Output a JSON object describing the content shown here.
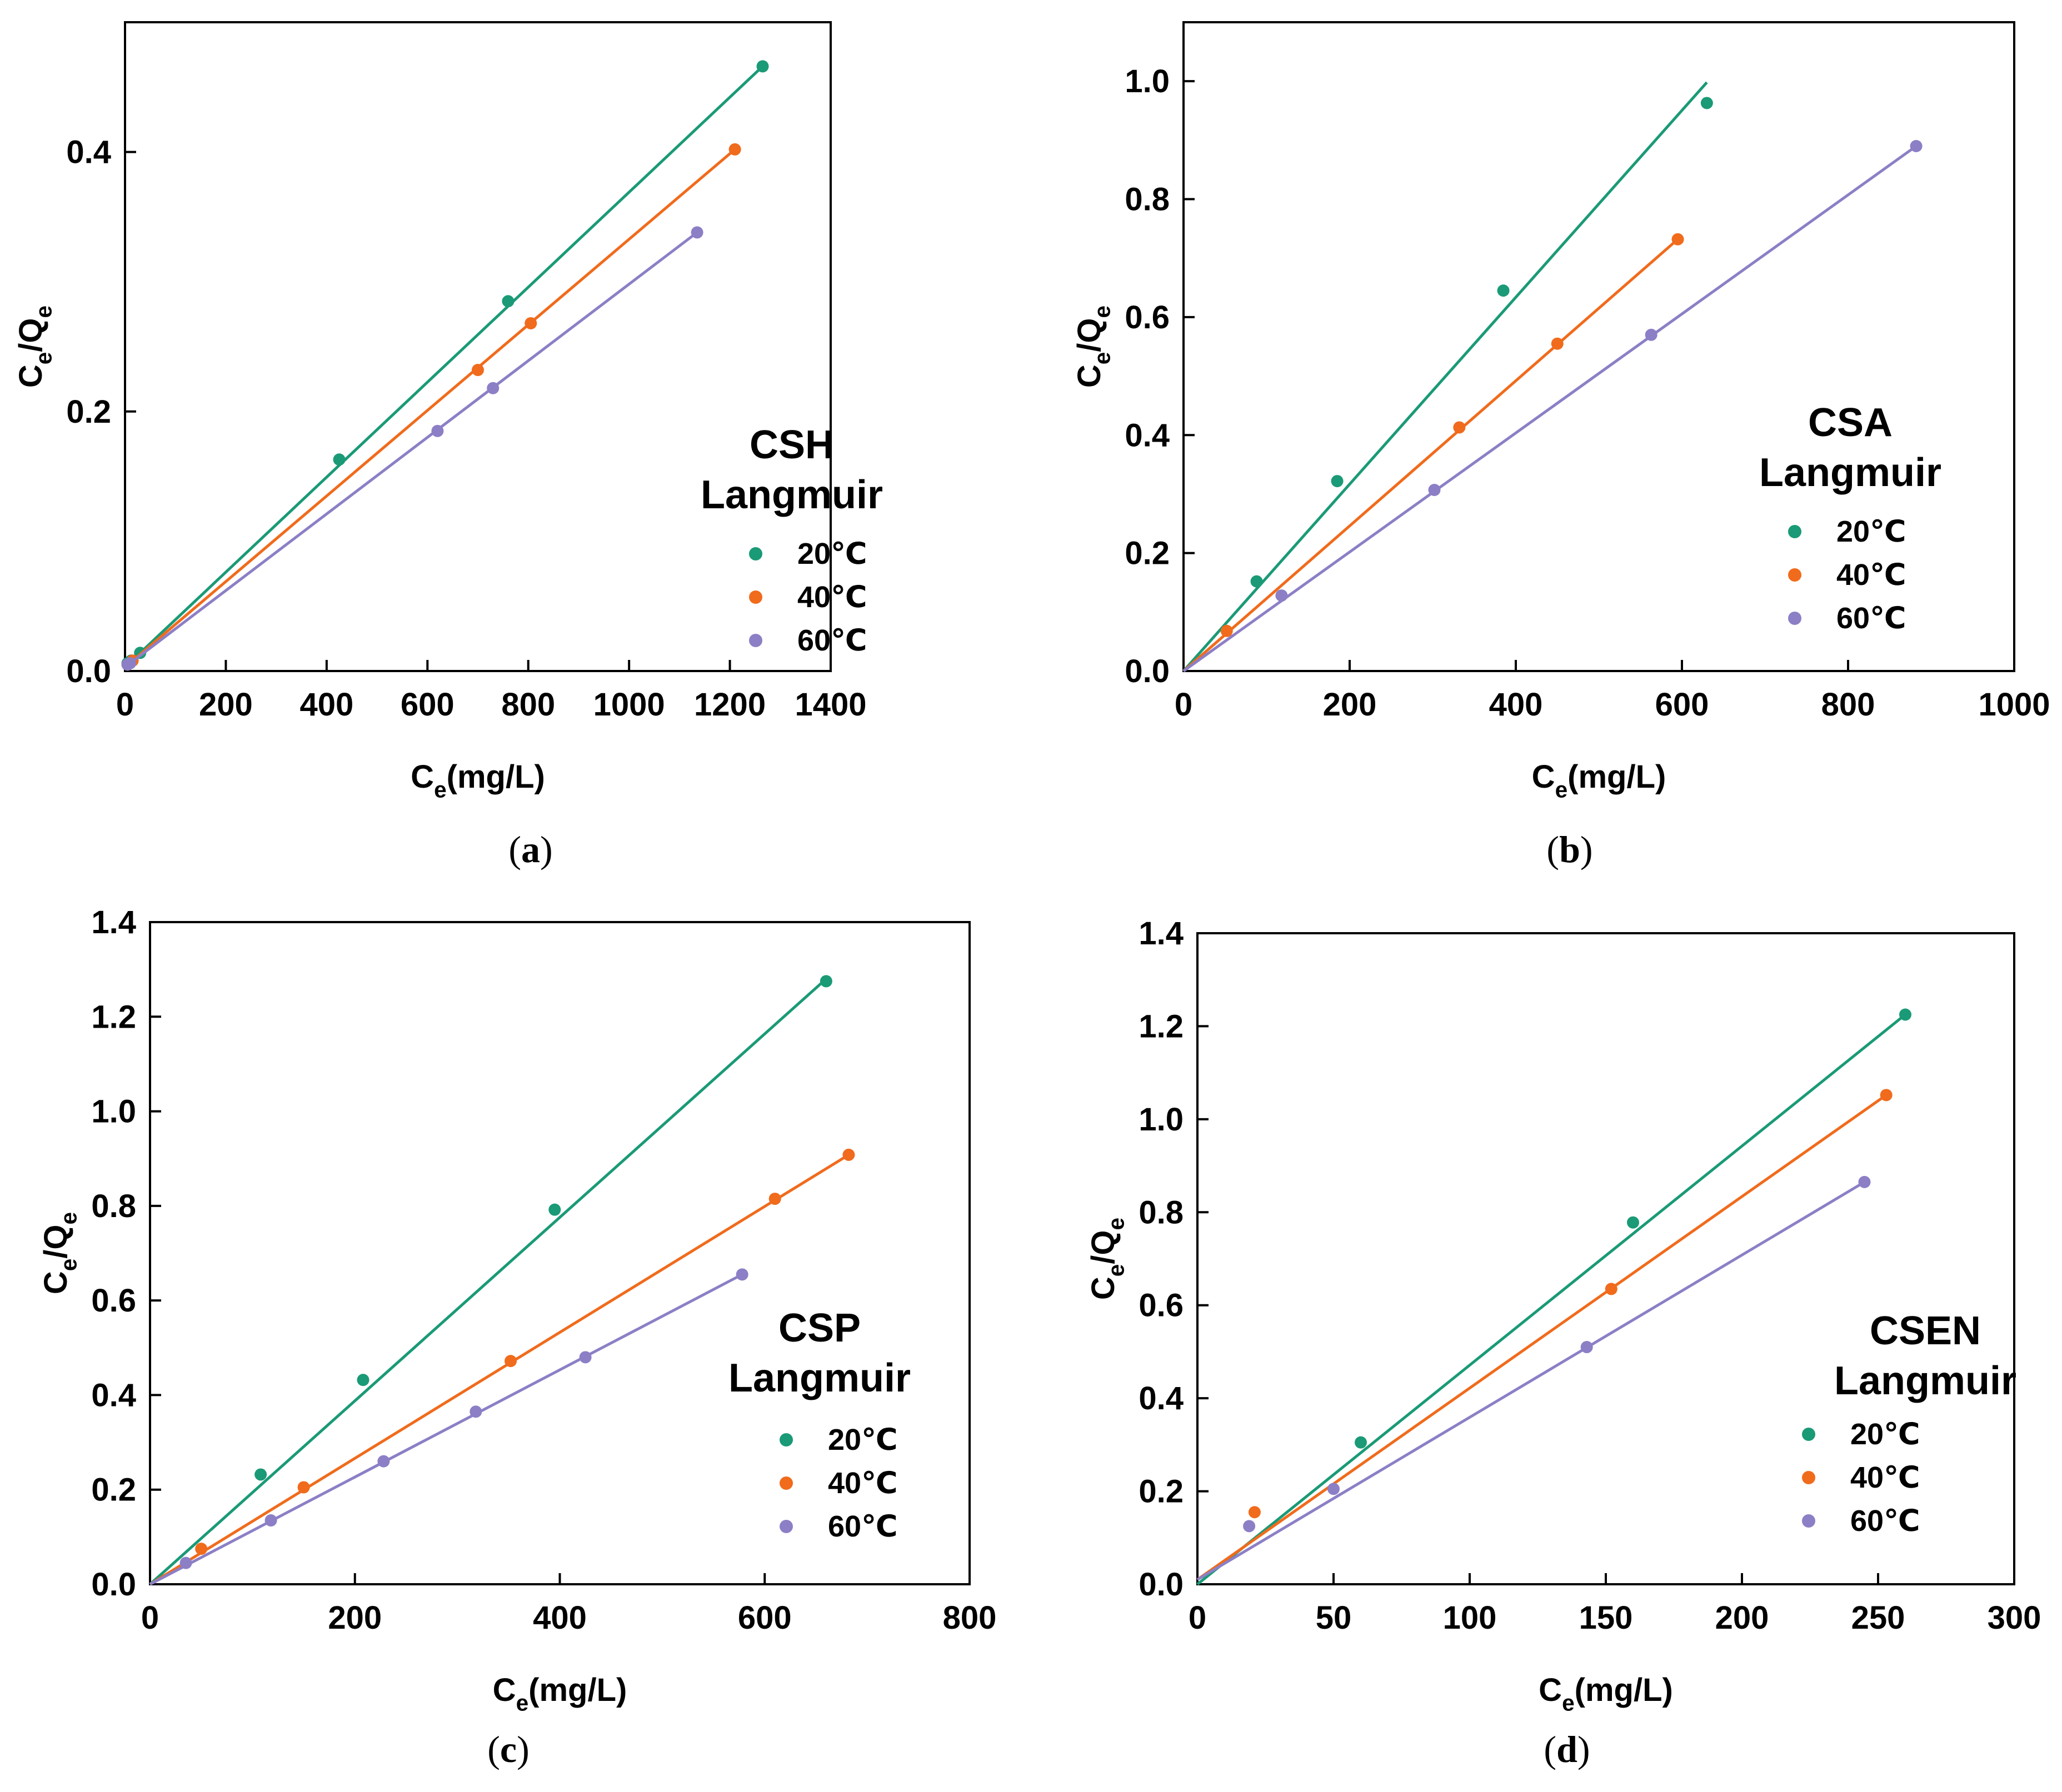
{
  "colors": {
    "t20": "#1a9a76",
    "t40": "#f06b1c",
    "t60": "#8c7fc6"
  },
  "chart_data": [
    {
      "type": "scatter",
      "panel": "a",
      "caption": "a",
      "title": "CSH",
      "subtitle": "Langmuir",
      "xlabel": "Ce(mg/L)",
      "ylabel": "Ce/Qe",
      "xlim": [
        0,
        1400
      ],
      "ylim": [
        0,
        0.5
      ],
      "xticks": [
        0,
        200,
        400,
        600,
        800,
        1000,
        1200,
        1400
      ],
      "yticks": [
        0.0,
        0.2,
        0.4
      ],
      "legend_position": "right",
      "series": [
        {
          "name": "20℃",
          "color_key": "t20",
          "x": [
            5,
            12,
            30,
            425,
            760,
            1265
          ],
          "y": [
            0.006,
            0.008,
            0.014,
            0.163,
            0.285,
            0.466
          ],
          "fit": [
            [
              0,
              0.003
            ],
            [
              1265,
              0.466
            ]
          ]
        },
        {
          "name": "40℃",
          "color_key": "t40",
          "x": [
            5,
            15,
            700,
            805,
            1210
          ],
          "y": [
            0.005,
            0.008,
            0.232,
            0.268,
            0.402
          ],
          "fit": [
            [
              0,
              0.003
            ],
            [
              1210,
              0.402
            ]
          ]
        },
        {
          "name": "60℃",
          "color_key": "t60",
          "x": [
            5,
            10,
            620,
            730,
            1135
          ],
          "y": [
            0.005,
            0.006,
            0.185,
            0.218,
            0.338
          ],
          "fit": [
            [
              0,
              0.003
            ],
            [
              1135,
              0.338
            ]
          ]
        }
      ]
    },
    {
      "type": "scatter",
      "panel": "b",
      "caption": "b",
      "title": "CSA",
      "subtitle": "Langmuir",
      "xlabel": "Ce(mg/L)",
      "ylabel": "Ce/Qe",
      "xlim": [
        0,
        1000
      ],
      "ylim": [
        0,
        1.1
      ],
      "xticks": [
        0,
        200,
        400,
        600,
        800,
        1000
      ],
      "yticks": [
        0.0,
        0.2,
        0.4,
        0.6,
        0.8,
        1.0
      ],
      "legend_position": "right",
      "series": [
        {
          "name": "20℃",
          "color_key": "t20",
          "x": [
            88,
            185,
            385,
            630
          ],
          "y": [
            0.152,
            0.322,
            0.645,
            0.963
          ],
          "fit": [
            [
              0,
              0.0
            ],
            [
              630,
              0.998
            ]
          ]
        },
        {
          "name": "40℃",
          "color_key": "t40",
          "x": [
            52,
            332,
            450,
            595
          ],
          "y": [
            0.068,
            0.413,
            0.555,
            0.732
          ],
          "fit": [
            [
              0,
              0.0
            ],
            [
              595,
              0.732
            ]
          ]
        },
        {
          "name": "60℃",
          "color_key": "t60",
          "x": [
            118,
            302,
            563,
            882
          ],
          "y": [
            0.128,
            0.307,
            0.57,
            0.89
          ],
          "fit": [
            [
              0,
              0.0
            ],
            [
              882,
              0.89
            ]
          ]
        }
      ]
    },
    {
      "type": "scatter",
      "panel": "c",
      "caption": "c",
      "title": "CSP",
      "subtitle": "Langmuir",
      "xlabel": "Ce(mg/L)",
      "ylabel": "Ce/Qe",
      "xlim": [
        0,
        800
      ],
      "ylim": [
        0,
        1.4
      ],
      "xticks": [
        0,
        200,
        400,
        600,
        800
      ],
      "yticks": [
        0.0,
        0.2,
        0.4,
        0.6,
        0.8,
        1.0,
        1.2,
        1.4
      ],
      "legend_position": "right",
      "series": [
        {
          "name": "20℃",
          "color_key": "t20",
          "x": [
            108,
            208,
            395,
            660
          ],
          "y": [
            0.232,
            0.432,
            0.792,
            1.275
          ],
          "fit": [
            [
              0,
              0.0
            ],
            [
              660,
              1.28
            ]
          ]
        },
        {
          "name": "40℃",
          "color_key": "t40",
          "x": [
            50,
            150,
            352,
            610,
            682
          ],
          "y": [
            0.075,
            0.205,
            0.472,
            0.815,
            0.908
          ],
          "fit": [
            [
              0,
              0.0
            ],
            [
              682,
              0.908
            ]
          ]
        },
        {
          "name": "60℃",
          "color_key": "t60",
          "x": [
            35,
            118,
            228,
            318,
            425,
            578
          ],
          "y": [
            0.045,
            0.135,
            0.26,
            0.365,
            0.48,
            0.655
          ],
          "fit": [
            [
              0,
              0.0
            ],
            [
              578,
              0.655
            ]
          ]
        }
      ]
    },
    {
      "type": "scatter",
      "panel": "d",
      "caption": "d",
      "title": "CSEN",
      "subtitle": "Langmuir",
      "xlabel": "Ce(mg/L)",
      "ylabel": "Ce/Qe",
      "xlim": [
        0,
        300
      ],
      "ylim": [
        0,
        1.4
      ],
      "xticks": [
        0,
        50,
        100,
        150,
        200,
        250,
        300
      ],
      "yticks": [
        0.0,
        0.2,
        0.4,
        0.6,
        0.8,
        1.0,
        1.2,
        1.4
      ],
      "legend_position": "right",
      "series": [
        {
          "name": "20℃",
          "color_key": "t20",
          "x": [
            60,
            160,
            260
          ],
          "y": [
            0.305,
            0.778,
            1.225
          ],
          "fit": [
            [
              0,
              0.0
            ],
            [
              260,
              1.225
            ]
          ]
        },
        {
          "name": "40℃",
          "color_key": "t40",
          "x": [
            21,
            152,
            253
          ],
          "y": [
            0.155,
            0.635,
            1.052
          ],
          "fit": [
            [
              0,
              0.01
            ],
            [
              253,
              1.052
            ]
          ]
        },
        {
          "name": "60℃",
          "color_key": "t60",
          "x": [
            19,
            50,
            143,
            245
          ],
          "y": [
            0.125,
            0.205,
            0.51,
            0.865
          ],
          "fit": [
            [
              0,
              0.01
            ],
            [
              245,
              0.865
            ]
          ]
        }
      ]
    }
  ]
}
